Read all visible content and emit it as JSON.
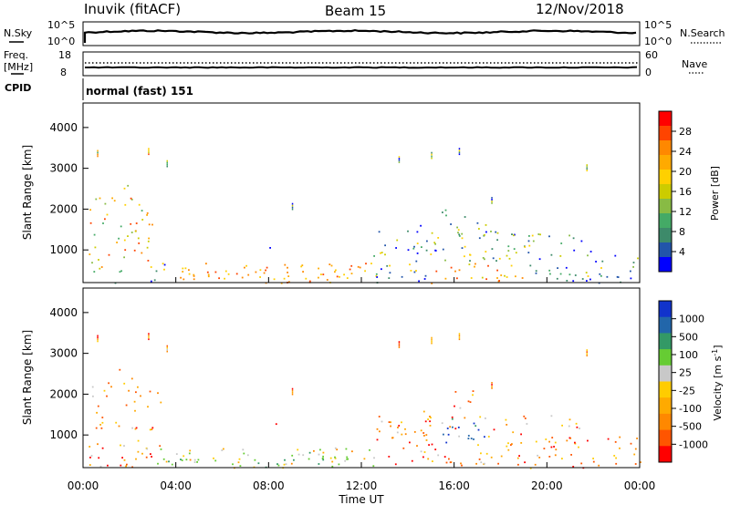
{
  "header": {
    "station": "Inuvik (fitACF)",
    "beam": "Beam 15",
    "date": "12/Nov/2018"
  },
  "sky_panel": {
    "left_label": "N.Sky",
    "right_label": "N.Search",
    "left_ticks": [
      "10^5",
      "10^0"
    ],
    "right_ticks": [
      "10^5",
      "10^0"
    ]
  },
  "freq_panel": {
    "left_label_1": "Freq.",
    "left_label_2": "[MHz]",
    "right_label": "Nave",
    "left_ticks": [
      "18",
      "8"
    ],
    "right_ticks": [
      "60",
      "0"
    ]
  },
  "cpid": {
    "label": "CPID",
    "value": "normal (fast) 151"
  },
  "power_colorbar": {
    "label": "Power [dB]",
    "ticks": [
      "28",
      "24",
      "20",
      "16",
      "12",
      "8",
      "4"
    ],
    "colors": [
      "#ff0000",
      "#ff4400",
      "#ff8800",
      "#ffaa00",
      "#ffd000",
      "#cccc00",
      "#88bb44",
      "#44aa66",
      "#3d8a6a",
      "#2255aa",
      "#0000ff"
    ]
  },
  "velocity_colorbar": {
    "label_main": "Velocity [m s",
    "label_sup": "-1",
    "label_end": "]",
    "ticks": [
      "1000",
      "500",
      "100",
      "25",
      "-25",
      "-100",
      "-500",
      "-1000"
    ],
    "colors": [
      "#1133cc",
      "#2266aa",
      "#339966",
      "#66cc33",
      "#c8c8c8",
      "#ffcc00",
      "#ffaa00",
      "#ff8800",
      "#ff5500",
      "#ff0000"
    ]
  },
  "chart_data": {
    "type": "heatmap",
    "xlabel": "Time UT",
    "ylabel": "Slant Range [km]",
    "x_ticks": [
      "00:00",
      "04:00",
      "08:00",
      "12:00",
      "16:00",
      "20:00",
      "00:00"
    ],
    "y_ticks": [
      "1000",
      "2000",
      "3000",
      "4000"
    ],
    "xlim_hours": [
      0,
      24
    ],
    "ylim_km": [
      200,
      4600
    ],
    "panels": [
      "Power [dB]",
      "Velocity [m s-1]"
    ]
  }
}
